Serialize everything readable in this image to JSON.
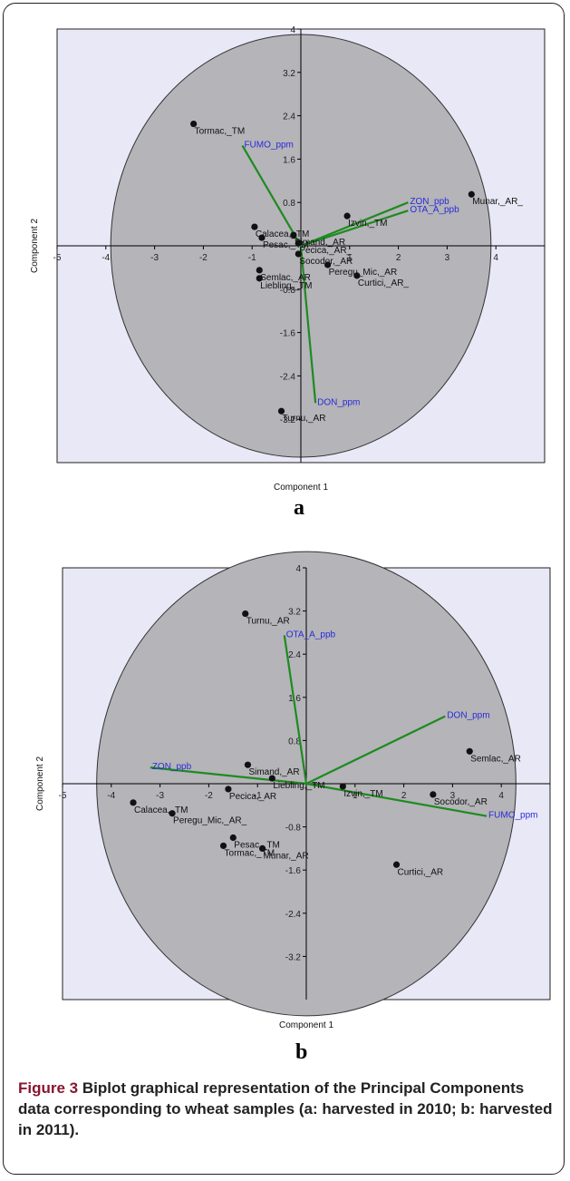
{
  "chart_data": [
    {
      "type": "scatter",
      "panel_label": "a",
      "xlabel": "Component 1",
      "ylabel": "Component 2",
      "xlim": [
        -5,
        5
      ],
      "ylim": [
        -4,
        4
      ],
      "xticks": [
        -5,
        -4,
        -3,
        -2,
        -1,
        1,
        2,
        3,
        4
      ],
      "yticks": [
        -3.2,
        -2.4,
        -1.6,
        -0.8,
        0.8,
        1.6,
        2.4,
        3.2,
        4
      ],
      "circle_radius": 3.9,
      "points": [
        {
          "label": "Tormac,_TM",
          "x": -2.2,
          "y": 2.25
        },
        {
          "label": "Munar,_AR_",
          "x": 3.5,
          "y": 0.95
        },
        {
          "label": "Izvin,_TM",
          "x": 0.95,
          "y": 0.55
        },
        {
          "label": "Calacea,_TM",
          "x": -0.95,
          "y": 0.35
        },
        {
          "label": "Simand,_AR",
          "x": -0.15,
          "y": 0.2
        },
        {
          "label": "Pesac,_TM",
          "x": -0.8,
          "y": 0.15
        },
        {
          "label": "Pecica,_AR_",
          "x": -0.05,
          "y": 0.05
        },
        {
          "label": "Socodor,_AR",
          "x": -0.05,
          "y": -0.15
        },
        {
          "label": "Peregu_Mic,_AR",
          "x": 0.55,
          "y": -0.35
        },
        {
          "label": "Curtici,_AR_",
          "x": 1.15,
          "y": -0.55
        },
        {
          "label": "Semlac,_AR",
          "x": -0.85,
          "y": -0.45
        },
        {
          "label": "Liebling,_TM",
          "x": -0.85,
          "y": -0.6
        },
        {
          "label": "Turnu,_AR",
          "x": -0.4,
          "y": -3.05
        }
      ],
      "vectors": [
        {
          "label": "FUMO_ppm",
          "x": -1.2,
          "y": 1.85
        },
        {
          "label": "ZON_ppb",
          "x": 2.2,
          "y": 0.8
        },
        {
          "label": "OTA_A_ppb",
          "x": 2.2,
          "y": 0.65
        },
        {
          "label": "DON_ppm",
          "x": 0.3,
          "y": -2.9
        }
      ]
    },
    {
      "type": "scatter",
      "panel_label": "b",
      "xlabel": "Component 1",
      "ylabel": "Component 2",
      "xlim": [
        -5,
        5
      ],
      "ylim": [
        -4,
        4
      ],
      "xticks": [
        -5,
        -4,
        -3,
        -2,
        -1,
        1,
        2,
        3,
        4
      ],
      "yticks": [
        -3.2,
        -2.4,
        -1.6,
        -0.8,
        0.8,
        1.6,
        2.4,
        3.2,
        4
      ],
      "circle_radius": 4.3,
      "points": [
        {
          "label": "Turnu,_AR",
          "x": -1.25,
          "y": 3.15
        },
        {
          "label": "Semlac,_AR",
          "x": 3.35,
          "y": 0.6
        },
        {
          "label": "Simand,_AR",
          "x": -1.2,
          "y": 0.35
        },
        {
          "label": "Liebling,_TM",
          "x": -0.7,
          "y": 0.1
        },
        {
          "label": "Izvin,_TM",
          "x": 0.75,
          "y": -0.05
        },
        {
          "label": "Pecica,_AR",
          "x": -1.6,
          "y": -0.1
        },
        {
          "label": "Calacea,_TM",
          "x": -3.55,
          "y": -0.35
        },
        {
          "label": "Peregu_Mic,_AR_",
          "x": -2.75,
          "y": -0.55
        },
        {
          "label": "Socodor,_AR",
          "x": 2.6,
          "y": -0.2
        },
        {
          "label": "Pesac,_TM",
          "x": -1.5,
          "y": -1.0
        },
        {
          "label": "Tormac,_TM",
          "x": -1.7,
          "y": -1.15
        },
        {
          "label": "Munar,_AR",
          "x": -0.9,
          "y": -1.2
        },
        {
          "label": "Curtici,_AR",
          "x": 1.85,
          "y": -1.5
        }
      ],
      "vectors": [
        {
          "label": "OTA_A_ppb",
          "x": -0.45,
          "y": 2.75
        },
        {
          "label": "DON_ppm",
          "x": 2.85,
          "y": 1.25
        },
        {
          "label": "ZON_ppb",
          "x": -3.2,
          "y": 0.3
        },
        {
          "label": "FUMO_ppm",
          "x": 3.7,
          "y": -0.6
        }
      ]
    }
  ],
  "caption": {
    "figure_label": "Figure 3",
    "text": "Biplot graphical representation of the Principal Components data corresponding to wheat samples (a: harvested in 2010; b: harvested in 2011)."
  },
  "colors": {
    "plot_bg": "#e8e8f6",
    "circle_fill": "#b4b4b9",
    "vector": "#1f8a1f",
    "vector_label": "#2a2ad8",
    "point": "#111111"
  }
}
